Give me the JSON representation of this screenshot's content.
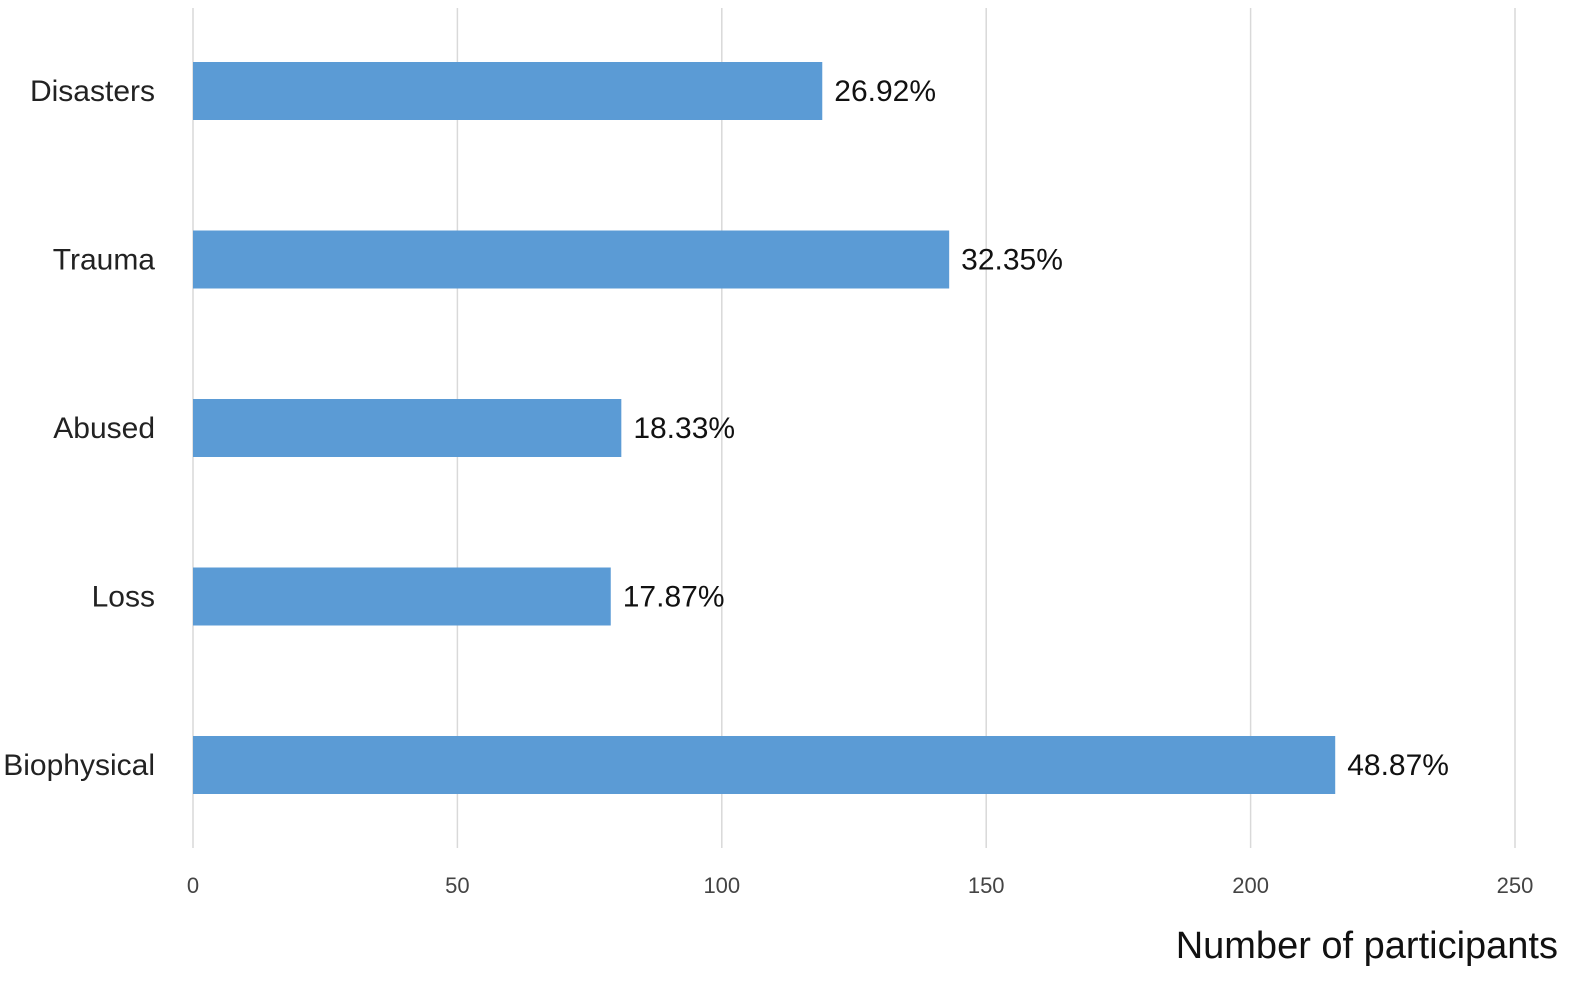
{
  "chart_data": {
    "type": "bar",
    "orientation": "horizontal",
    "categories": [
      "Disasters",
      "Trauma",
      "Abused",
      "Loss",
      "Biophysical"
    ],
    "values": [
      119,
      143,
      81,
      79,
      216
    ],
    "data_labels": [
      "26.92%",
      "32.35%",
      "18.33%",
      "17.87%",
      "48.87%"
    ],
    "xlabel": "Number of participants",
    "ylabel": "",
    "xlim": [
      0,
      250
    ],
    "x_ticks": [
      0,
      50,
      100,
      150,
      200,
      250
    ],
    "grid": "vertical",
    "legend": "none",
    "bar_color": "#5b9bd5",
    "grid_color": "#d9d9d9"
  }
}
